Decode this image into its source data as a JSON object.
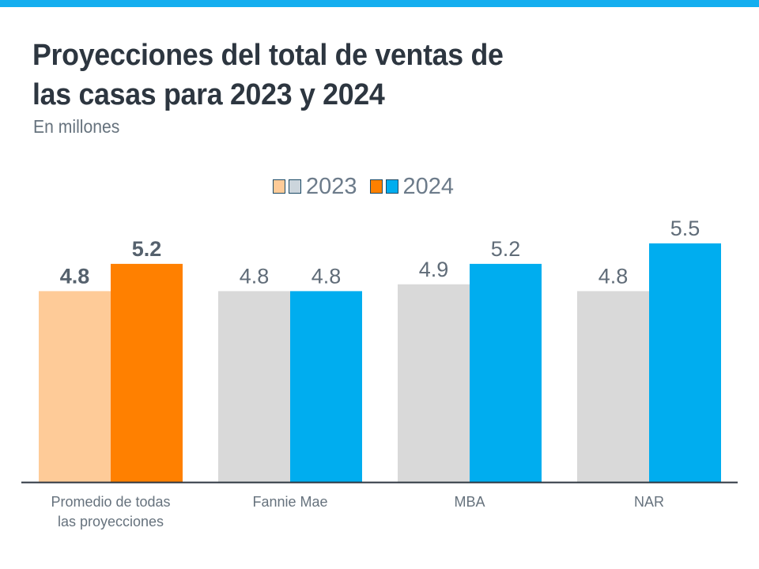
{
  "header": {
    "title_line1": "Proyecciones del total de ventas de",
    "title_line2": "las casas para 2023 y 2024",
    "subtitle": "En millones",
    "accent_color": "#14aeef"
  },
  "chart_data": {
    "type": "bar",
    "title": "Proyecciones del total de ventas de las casas para 2023 y 2024",
    "subtitle": "En millones",
    "xlabel": "",
    "ylabel": "",
    "ylim": [
      2.0,
      5.5
    ],
    "grid": false,
    "legend_position": "top-center",
    "categories": [
      [
        "Promedio de todas",
        "las proyecciones"
      ],
      [
        "Fannie Mae"
      ],
      [
        "MBA"
      ],
      [
        "NAR"
      ]
    ],
    "series": [
      {
        "name": "2023",
        "values": [
          4.8,
          4.8,
          4.9,
          4.8
        ],
        "labels": [
          "4.8",
          "4.8",
          "4.9",
          "4.8"
        ],
        "colors": [
          "#fecb98",
          "#d9d9d9",
          "#d9d9d9",
          "#d9d9d9"
        ]
      },
      {
        "name": "2024",
        "values": [
          5.2,
          4.8,
          5.2,
          5.5
        ],
        "labels": [
          "5.2",
          "4.8",
          "5.2",
          "5.5"
        ],
        "colors": [
          "#ff8000",
          "#00adef",
          "#00adef",
          "#00adef"
        ]
      }
    ],
    "highlight_category_index": 0,
    "legend": [
      {
        "label": "2023",
        "swatches": [
          "#fecb98",
          "#ccd5dc"
        ]
      },
      {
        "label": "2024",
        "swatches": [
          "#ff8000",
          "#00adef"
        ]
      }
    ]
  }
}
